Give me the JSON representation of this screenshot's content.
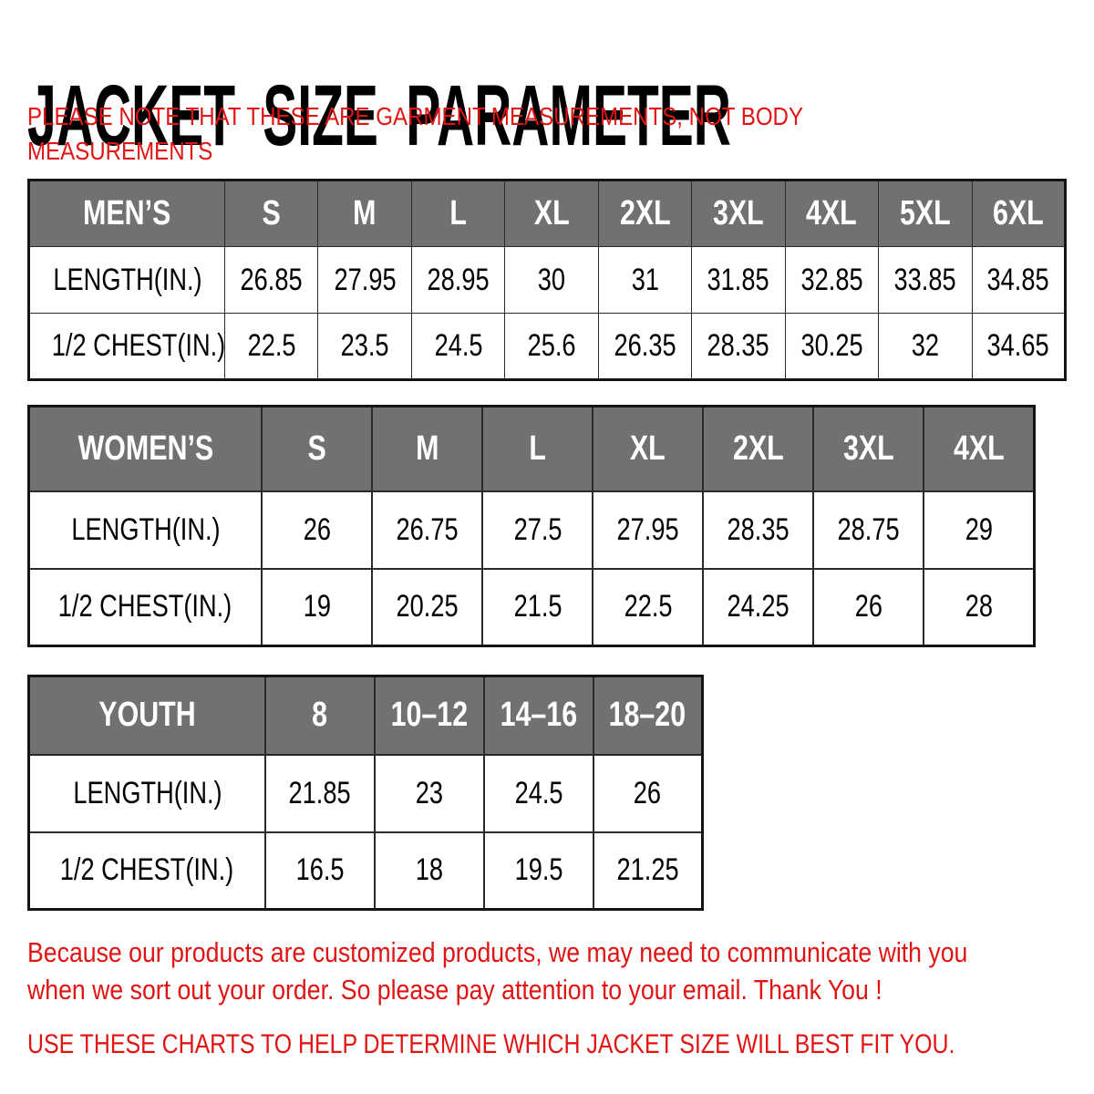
{
  "page": {
    "title": "JACKET SIZE PARAMETER",
    "note_line1": "PLEASE NOTE THAT THESE ARE GARMENT MEASUREMENTS, NOT BODY",
    "note_line2": "MEASUREMENTS",
    "footer_line1": "Because our products are customized products, we may need to communicate with you",
    "footer_line2": "when we sort out your order. So please pay attention to your email. Thank You !",
    "footer_caps": "USE THESE CHARTS TO HELP DETERMINE WHICH JACKET SIZE WILL BEST FIT YOU."
  },
  "colors": {
    "accent_red": "#e11414",
    "header_gray": "#717171",
    "border_black": "#141414",
    "text_black": "#000000"
  },
  "tables": [
    {
      "name": "mens-size-table",
      "header": [
        "MEN’S",
        "S",
        "M",
        "L",
        "XL",
        "2XL",
        "3XL",
        "4XL",
        "5XL",
        "6XL"
      ],
      "rows": [
        [
          "LENGTH(IN.)",
          "26.85",
          "27.95",
          "28.95",
          "30",
          "31",
          "31.85",
          "32.85",
          "33.85",
          "34.85"
        ],
        [
          "1/2 CHEST(IN.)",
          "22.5",
          "23.5",
          "24.5",
          "25.6",
          "26.35",
          "28.35",
          "30.25",
          "32",
          "34.65"
        ]
      ]
    },
    {
      "name": "womens-size-table",
      "header": [
        "WOMEN’S",
        "S",
        "M",
        "L",
        "XL",
        "2XL",
        "3XL",
        "4XL"
      ],
      "rows": [
        [
          "LENGTH(IN.)",
          "26",
          "26.75",
          "27.5",
          "27.95",
          "28.35",
          "28.75",
          "29"
        ],
        [
          "1/2 CHEST(IN.)",
          "19",
          "20.25",
          "21.5",
          "22.5",
          "24.25",
          "26",
          "28"
        ]
      ]
    },
    {
      "name": "youth-size-table",
      "header": [
        "YOUTH",
        "8",
        "10–12",
        "14–16",
        "18–20"
      ],
      "rows": [
        [
          "LENGTH(IN.)",
          "21.85",
          "23",
          "24.5",
          "26"
        ],
        [
          "1/2 CHEST(IN.)",
          "16.5",
          "18",
          "19.5",
          "21.25"
        ]
      ]
    }
  ]
}
